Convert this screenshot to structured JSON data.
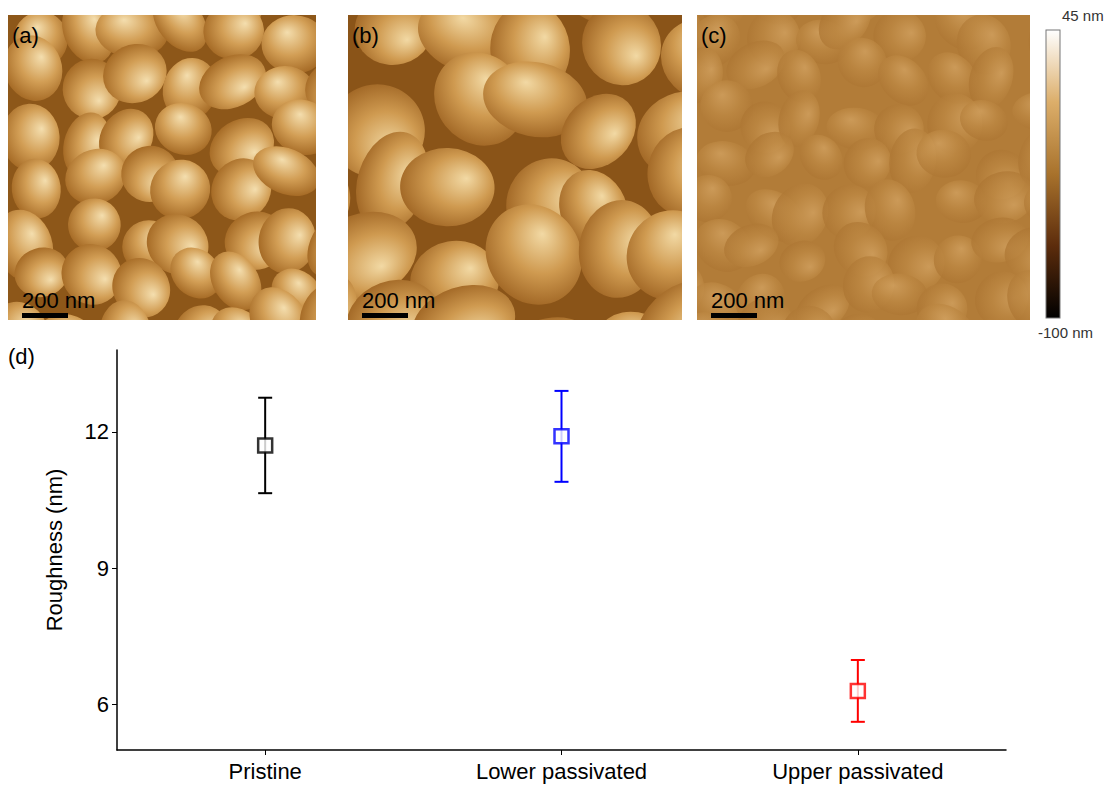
{
  "images": [
    {
      "label": "(a)",
      "scale_bar": "200 nm"
    },
    {
      "label": "(b)",
      "scale_bar": "200 nm"
    },
    {
      "label": "(c)",
      "scale_bar": "200 nm"
    }
  ],
  "colorbar": {
    "range": [
      -100,
      45
    ],
    "ticks": [
      {
        "value": -100,
        "label": "-100 nm"
      },
      {
        "value": 45,
        "label": "45 nm"
      }
    ]
  },
  "chart_data": {
    "type": "scatter",
    "panel": "(d)",
    "y_label": "Roughness (nm)",
    "categories": [
      "Pristine",
      "Lower passivated",
      "Upper passivated"
    ],
    "values": [
      11.7,
      11.9,
      6.3
    ],
    "errors": [
      1.05,
      1.0,
      0.68
    ],
    "colors": [
      "#000000",
      "#0000ff",
      "#ff0000"
    ],
    "marker": "open square",
    "ylim": [
      5,
      13.8
    ],
    "yticks": [
      6,
      9,
      12
    ],
    "grid": false
  }
}
